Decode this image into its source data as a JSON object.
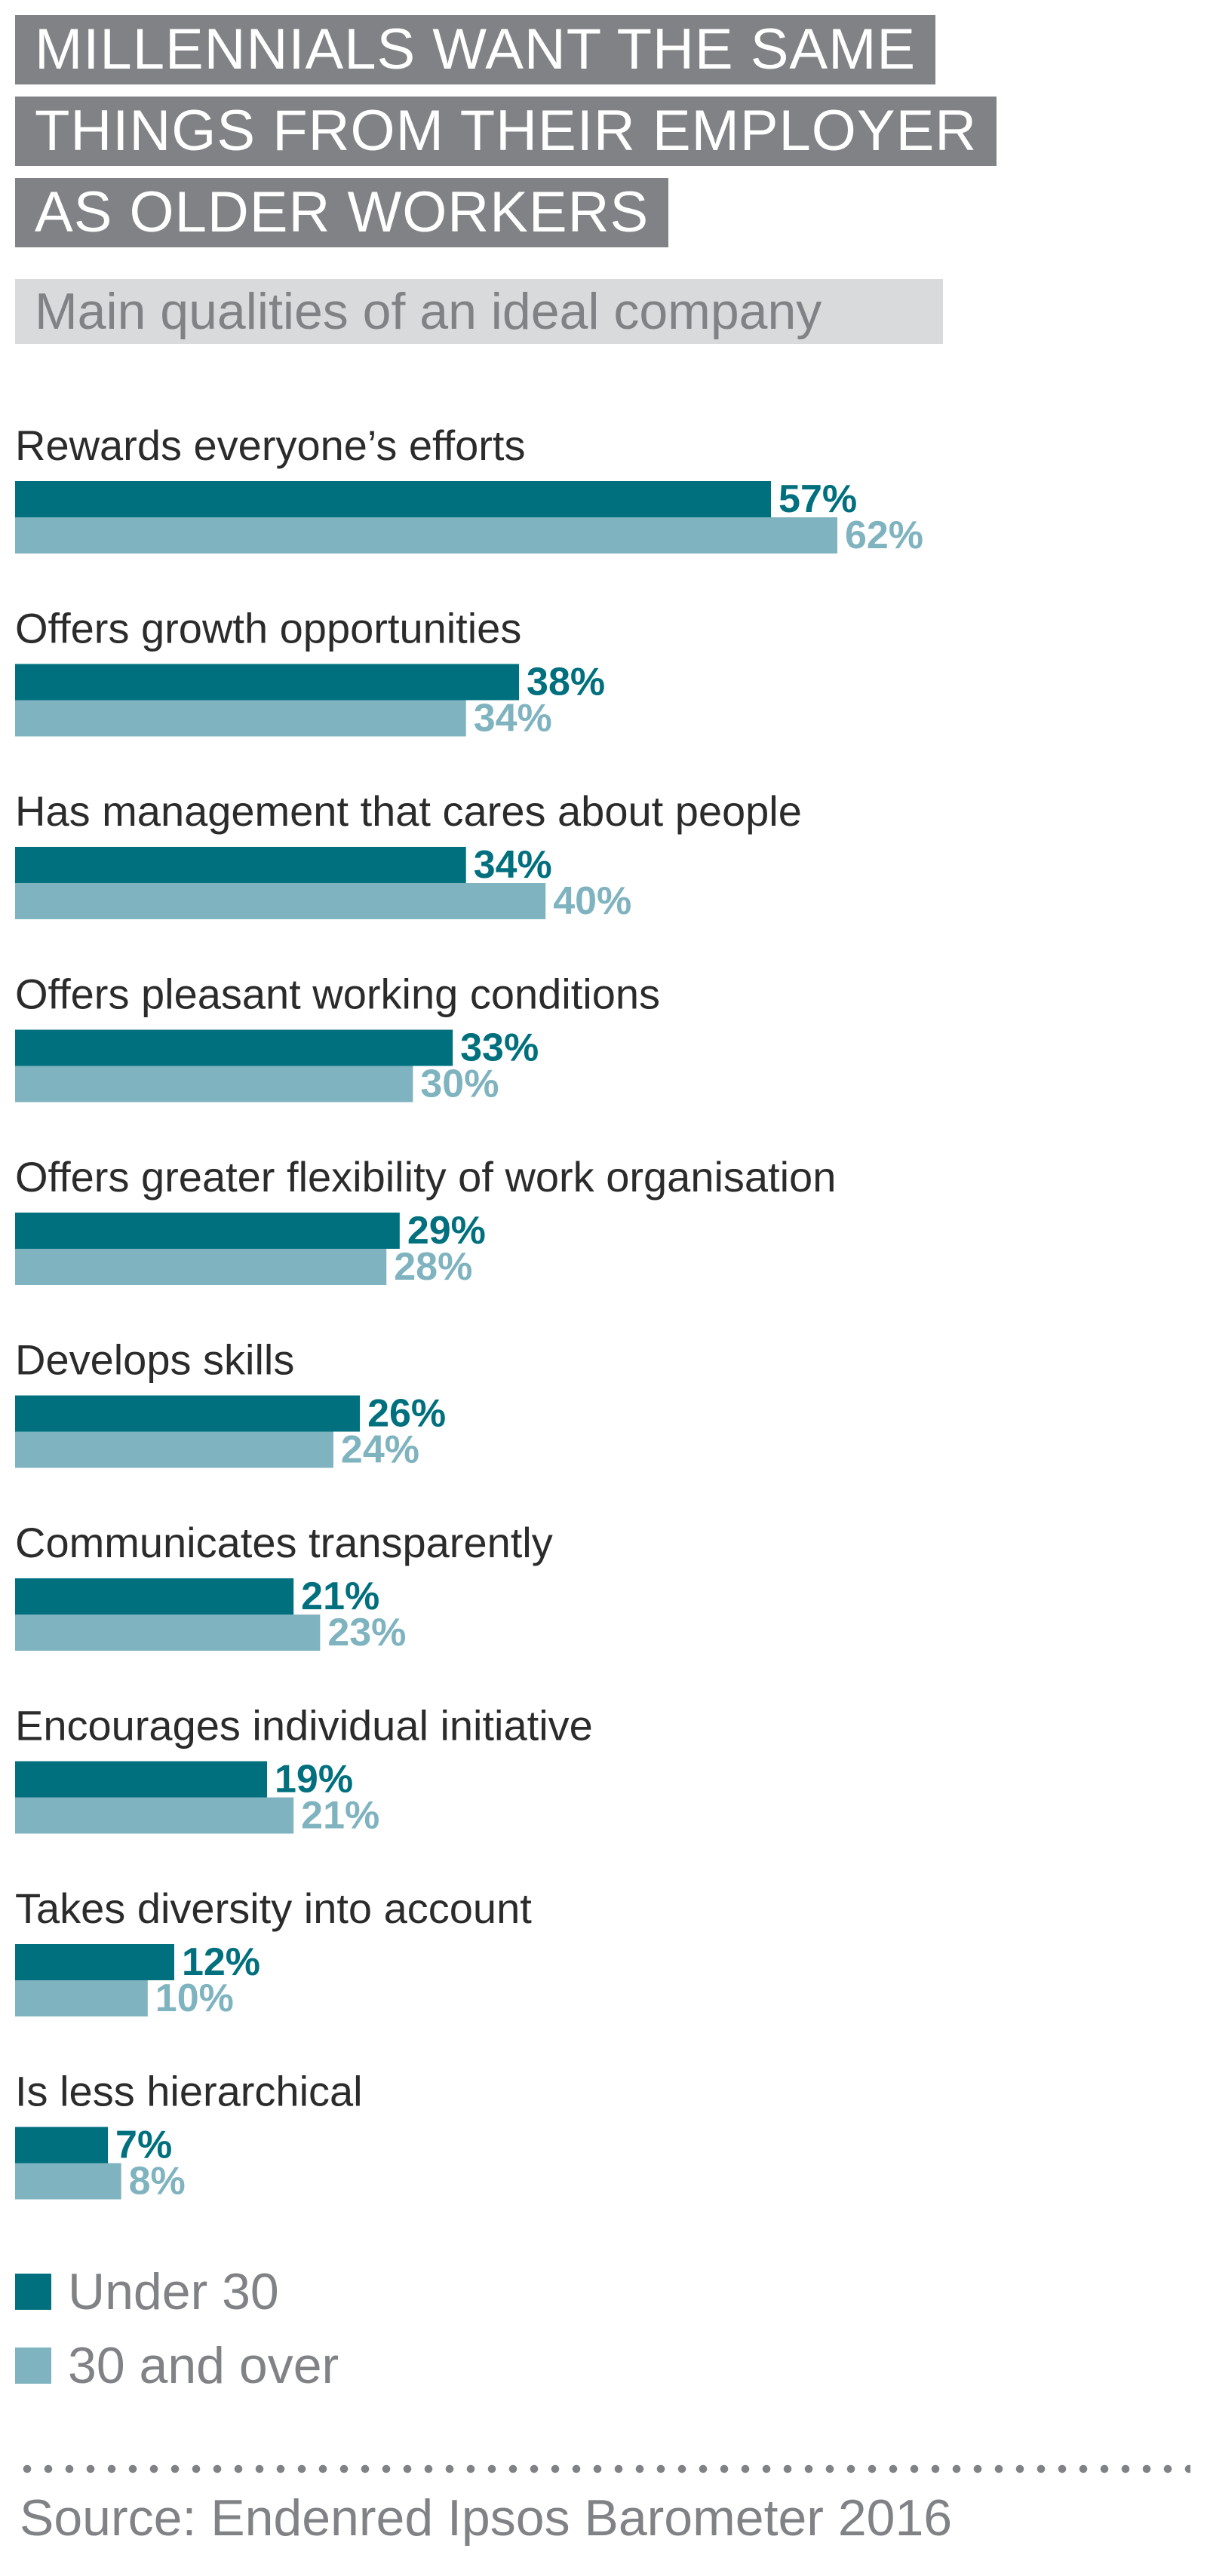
{
  "title_lines": [
    "MILLENNIALS WANT THE SAME",
    "THINGS FROM THEIR EMPLOYER",
    "AS OLDER WORKERS"
  ],
  "subtitle": "Main qualities of an ideal company",
  "source": "Source: Endenred Ipsos Barometer 2016",
  "colors": {
    "under30": "#00707f",
    "over30": "#7fb3bf",
    "title_bg": "#808285",
    "subtitle_bg": "#d9dadb"
  },
  "chart_data": {
    "type": "bar",
    "orientation": "horizontal",
    "title": "MILLENNIALS WANT THE SAME THINGS FROM THEIR EMPLOYER AS OLDER WORKERS",
    "subtitle": "Main qualities of an ideal company",
    "categories": [
      "Rewards everyone’s efforts",
      "Offers growth opportunities",
      "Has management that cares about people",
      "Offers pleasant working conditions",
      "Offers greater flexibility of work organisation",
      "Develops skills",
      "Communicates transparently",
      "Encourages individual initiative",
      "Takes diversity into account",
      "Is less hierarchical"
    ],
    "series": [
      {
        "name": "Under 30",
        "values": [
          57,
          38,
          34,
          33,
          29,
          26,
          21,
          19,
          12,
          7
        ]
      },
      {
        "name": "30 and over",
        "values": [
          62,
          34,
          40,
          30,
          28,
          24,
          23,
          21,
          10,
          8
        ]
      }
    ],
    "value_suffix": "%",
    "xlim": [
      0,
      100
    ],
    "grid": false,
    "legend_position": "bottom-left"
  }
}
